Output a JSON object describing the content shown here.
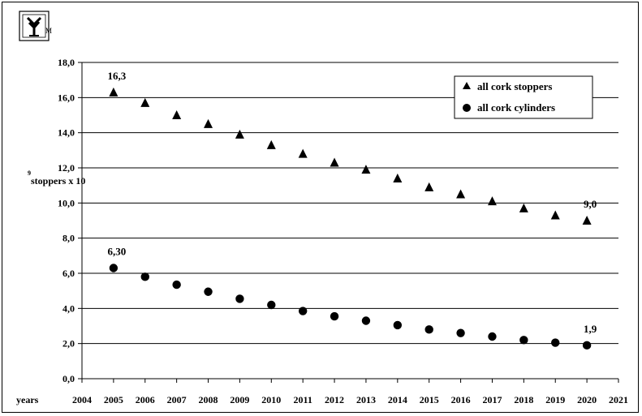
{
  "logo": {
    "name": "logo-icon",
    "letters": "M"
  },
  "chart_data": {
    "type": "scatter",
    "ylabel_prefix": "9",
    "ylabel": "stoppers x 10",
    "xlabel": "years",
    "xlim": [
      2004,
      2021
    ],
    "ylim": [
      0,
      18
    ],
    "x_ticks": [
      "2004",
      "2005",
      "2006",
      "2007",
      "2008",
      "2009",
      "2010",
      "2011",
      "2012",
      "2013",
      "2014",
      "2015",
      "2016",
      "2017",
      "2018",
      "2019",
      "2020",
      "2021"
    ],
    "y_ticks": [
      "0,0",
      "2,0",
      "4,0",
      "6,0",
      "8,0",
      "10,0",
      "12,0",
      "14,0",
      "16,0",
      "18,0"
    ],
    "y_tick_values": [
      0,
      2,
      4,
      6,
      8,
      10,
      12,
      14,
      16,
      18
    ],
    "grid": "horizontal",
    "legend_position": "top-right",
    "series": [
      {
        "name": "all cork stoppers",
        "marker": "triangle",
        "x": [
          2005,
          2006,
          2007,
          2008,
          2009,
          2010,
          2011,
          2012,
          2013,
          2014,
          2015,
          2016,
          2017,
          2018,
          2019,
          2020
        ],
        "values": [
          16.3,
          15.7,
          15.0,
          14.5,
          13.9,
          13.3,
          12.8,
          12.3,
          11.9,
          11.4,
          10.9,
          10.5,
          10.1,
          9.7,
          9.3,
          9.0
        ],
        "labels": [
          {
            "x": 2005,
            "text": "16,3"
          },
          {
            "x": 2020,
            "text": "9,0"
          }
        ]
      },
      {
        "name": "all cork cylinders",
        "marker": "circle",
        "x": [
          2005,
          2006,
          2007,
          2008,
          2009,
          2010,
          2011,
          2012,
          2013,
          2014,
          2015,
          2016,
          2017,
          2018,
          2019,
          2020
        ],
        "values": [
          6.3,
          5.8,
          5.35,
          4.95,
          4.55,
          4.2,
          3.85,
          3.55,
          3.3,
          3.05,
          2.8,
          2.6,
          2.4,
          2.2,
          2.05,
          1.9
        ],
        "labels": [
          {
            "x": 2005,
            "text": "6,30"
          },
          {
            "x": 2020,
            "text": "1,9"
          }
        ]
      }
    ]
  }
}
